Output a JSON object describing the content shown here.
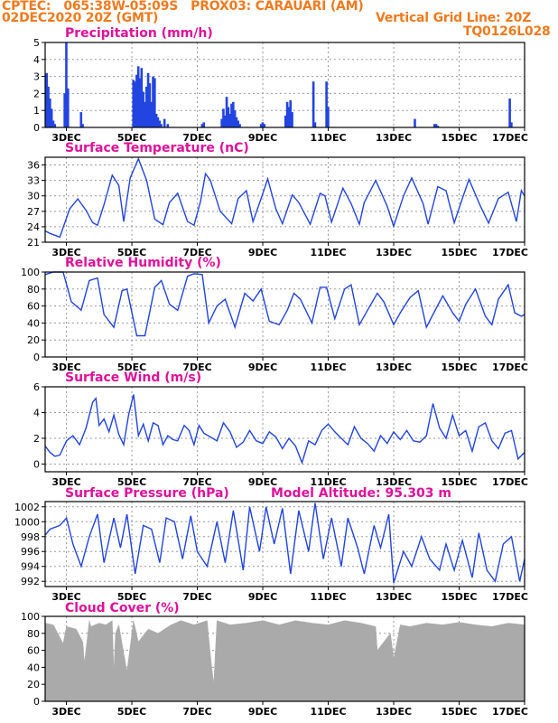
{
  "header": {
    "line1_left": "CPTEC:   065:38W-05:09S   PROX03: CARAUARI (AM)",
    "line2_left": "02DEC2020 20Z (GMT)",
    "line2_right": "Vertical Grid Line: 20Z",
    "line3_right": "TQ0126L028"
  },
  "colors": {
    "header": "#f07a1e",
    "title": "#e0109a",
    "series": "#2244e0",
    "cloud": "#aaaaaa"
  },
  "x_axis": {
    "ticks": [
      "3DEC",
      "5DEC",
      "7DEC",
      "9DEC",
      "11DEC",
      "13DEC",
      "15DEC",
      "17DEC"
    ],
    "tick_days": [
      3,
      5,
      7,
      9,
      11,
      13,
      15,
      17
    ],
    "range": [
      2.35,
      17.0
    ]
  },
  "chart_data": [
    {
      "type": "bar",
      "title": "Precipitation (mm/h)",
      "ylim": [
        0,
        5
      ],
      "yticks": [
        0,
        1,
        2,
        3,
        4,
        5
      ],
      "x": [
        2.4,
        2.45,
        2.5,
        2.55,
        2.6,
        2.65,
        2.95,
        3.0,
        3.05,
        3.45,
        3.5,
        5.05,
        5.1,
        5.15,
        5.2,
        5.25,
        5.3,
        5.35,
        5.4,
        5.45,
        5.5,
        5.55,
        5.6,
        5.65,
        5.7,
        5.75,
        5.8,
        5.85,
        5.9,
        6.0,
        6.1,
        7.15,
        7.2,
        7.75,
        7.8,
        7.85,
        7.9,
        7.95,
        8.0,
        8.05,
        8.1,
        8.15,
        8.2,
        8.25,
        8.3,
        8.95,
        9.0,
        9.05,
        9.7,
        9.75,
        9.8,
        9.85,
        9.9,
        10.55,
        10.6,
        10.95,
        11.0,
        13.65,
        14.25,
        14.3,
        14.35,
        16.55,
        16.6
      ],
      "values": [
        3.2,
        2.4,
        1.7,
        1.1,
        0.4,
        0.2,
        2.0,
        5.0,
        2.3,
        0.9,
        0.2,
        2.8,
        2.7,
        3.1,
        3.6,
        2.9,
        3.5,
        2.1,
        1.5,
        2.4,
        3.2,
        2.6,
        1.5,
        3.0,
        2.9,
        0.8,
        0.6,
        0.4,
        0.2,
        0.5,
        0.2,
        0.2,
        0.3,
        0.5,
        1.1,
        0.7,
        1.8,
        1.2,
        0.8,
        1.4,
        1.5,
        1.0,
        0.6,
        0.4,
        0.2,
        0.2,
        0.3,
        0.2,
        0.7,
        1.5,
        1.2,
        1.6,
        0.9,
        2.7,
        0.3,
        2.7,
        1.2,
        0.5,
        0.2,
        0.2,
        0.1,
        1.7,
        0.3
      ]
    },
    {
      "type": "line",
      "title": "Surface Temperature (nC)",
      "ylim": [
        21,
        37.5
      ],
      "yticks": [
        21,
        24,
        27,
        30,
        33,
        36
      ],
      "x": [
        2.35,
        2.5,
        2.8,
        3.1,
        3.35,
        3.6,
        3.8,
        3.95,
        4.15,
        4.4,
        4.6,
        4.75,
        4.95,
        5.2,
        5.45,
        5.7,
        5.95,
        6.15,
        6.4,
        6.7,
        6.9,
        7.1,
        7.25,
        7.4,
        7.7,
        8.05,
        8.25,
        8.5,
        8.7,
        8.95,
        9.15,
        9.4,
        9.6,
        9.9,
        10.1,
        10.45,
        10.75,
        10.9,
        11.1,
        11.45,
        11.7,
        11.95,
        12.1,
        12.45,
        12.8,
        13.0,
        13.3,
        13.55,
        13.9,
        14.05,
        14.35,
        14.6,
        14.85,
        15.1,
        15.3,
        15.65,
        15.9,
        16.2,
        16.5,
        16.75,
        16.9,
        17.0
      ],
      "values": [
        23.2,
        22.7,
        22.0,
        27.5,
        29.4,
        27.2,
        24.8,
        24.3,
        28.3,
        34.0,
        32.0,
        25.0,
        33.5,
        37.2,
        33.0,
        25.5,
        24.4,
        28.7,
        30.5,
        25.0,
        24.3,
        29.0,
        34.3,
        33.0,
        27.0,
        24.6,
        29.5,
        31.0,
        25.0,
        29.5,
        33.3,
        27.5,
        24.6,
        30.2,
        28.7,
        24.5,
        30.5,
        30.0,
        24.9,
        31.5,
        28.5,
        24.5,
        28.7,
        33.0,
        28.0,
        24.1,
        30.0,
        33.5,
        28.5,
        24.5,
        31.8,
        31.0,
        24.8,
        29.5,
        33.2,
        28.0,
        24.7,
        29.5,
        30.7,
        25.0,
        31.0,
        30.0
      ]
    },
    {
      "type": "line",
      "title": "Relative Humidity (%)",
      "ylim": [
        0,
        100
      ],
      "yticks": [
        0,
        20,
        40,
        60,
        80,
        100
      ],
      "x": [
        2.35,
        2.6,
        2.9,
        3.15,
        3.45,
        3.7,
        3.95,
        4.15,
        4.45,
        4.7,
        4.85,
        5.15,
        5.4,
        5.7,
        5.9,
        6.15,
        6.4,
        6.7,
        6.9,
        7.15,
        7.35,
        7.6,
        7.85,
        8.15,
        8.45,
        8.7,
        8.95,
        9.2,
        9.5,
        9.75,
        9.95,
        10.15,
        10.5,
        10.75,
        10.95,
        11.2,
        11.5,
        11.7,
        11.95,
        12.2,
        12.5,
        12.7,
        13.0,
        13.2,
        13.5,
        13.75,
        14.0,
        14.2,
        14.5,
        14.8,
        15.0,
        15.2,
        15.5,
        15.8,
        16.0,
        16.2,
        16.5,
        16.7,
        16.9,
        17.0
      ],
      "values": [
        97,
        100,
        100,
        65,
        55,
        90,
        93,
        50,
        35,
        78,
        80,
        25,
        25,
        82,
        90,
        62,
        55,
        95,
        98,
        97,
        40,
        60,
        68,
        35,
        75,
        66,
        80,
        42,
        38,
        55,
        75,
        68,
        40,
        82,
        82,
        45,
        80,
        85,
        38,
        55,
        75,
        65,
        38,
        52,
        70,
        78,
        35,
        50,
        72,
        52,
        42,
        62,
        80,
        48,
        38,
        68,
        85,
        52,
        48,
        50
      ]
    },
    {
      "type": "line",
      "title": "Surface Wind (m/s)",
      "ylim": [
        -0.6,
        6
      ],
      "yticks": [
        0,
        2,
        4,
        6
      ],
      "x": [
        2.35,
        2.5,
        2.65,
        2.8,
        3.0,
        3.2,
        3.4,
        3.6,
        3.8,
        3.9,
        4.0,
        4.15,
        4.3,
        4.45,
        4.6,
        4.75,
        4.9,
        5.05,
        5.2,
        5.35,
        5.5,
        5.65,
        5.8,
        5.95,
        6.1,
        6.25,
        6.4,
        6.6,
        6.75,
        6.9,
        7.05,
        7.2,
        7.4,
        7.6,
        7.8,
        8.0,
        8.2,
        8.4,
        8.6,
        8.8,
        9.0,
        9.2,
        9.4,
        9.6,
        9.8,
        10.0,
        10.2,
        10.4,
        10.6,
        10.8,
        11.0,
        11.2,
        11.4,
        11.6,
        11.8,
        12.0,
        12.2,
        12.4,
        12.6,
        12.8,
        13.0,
        13.2,
        13.4,
        13.6,
        13.8,
        14.0,
        14.2,
        14.4,
        14.6,
        14.8,
        15.0,
        15.2,
        15.4,
        15.6,
        15.8,
        16.0,
        16.2,
        16.4,
        16.6,
        16.8,
        17.0
      ],
      "values": [
        1.4,
        0.9,
        0.6,
        0.7,
        1.8,
        2.2,
        1.5,
        2.8,
        4.8,
        5.1,
        3.0,
        3.5,
        2.5,
        3.8,
        2.3,
        1.5,
        3.8,
        5.4,
        2.2,
        3.1,
        1.8,
        3.2,
        3.0,
        1.5,
        2.2,
        1.9,
        1.8,
        3.0,
        2.6,
        1.5,
        3.0,
        2.4,
        2.1,
        1.8,
        3.2,
        2.5,
        1.3,
        1.7,
        2.6,
        1.8,
        1.6,
        2.5,
        2.1,
        1.2,
        2.0,
        1.4,
        0.1,
        1.8,
        1.5,
        2.6,
        3.1,
        2.5,
        2.0,
        1.5,
        2.9,
        2.0,
        1.6,
        1.0,
        2.2,
        1.6,
        2.5,
        1.9,
        2.6,
        1.8,
        1.7,
        2.2,
        4.7,
        2.8,
        2.0,
        3.8,
        2.2,
        2.6,
        1.0,
        2.9,
        3.2,
        1.8,
        1.2,
        2.4,
        2.6,
        0.4,
        0.9
      ]
    },
    {
      "type": "line",
      "title": "Surface Pressure (hPa)",
      "annotation": "Model Altitude: 95.303 m",
      "ylim": [
        991.3,
        1002.7
      ],
      "yticks": [
        992,
        994,
        996,
        998,
        1000,
        1002
      ],
      "x": [
        2.35,
        2.5,
        2.8,
        3.0,
        3.2,
        3.45,
        3.7,
        3.95,
        4.15,
        4.45,
        4.65,
        4.85,
        5.1,
        5.35,
        5.6,
        5.85,
        6.05,
        6.3,
        6.55,
        6.8,
        7.0,
        7.3,
        7.6,
        7.85,
        8.1,
        8.4,
        8.6,
        8.9,
        9.1,
        9.35,
        9.6,
        9.85,
        10.1,
        10.4,
        10.6,
        10.85,
        11.1,
        11.4,
        11.6,
        11.9,
        12.1,
        12.4,
        12.6,
        12.85,
        13.0,
        13.3,
        13.55,
        13.85,
        14.1,
        14.4,
        14.6,
        14.85,
        15.1,
        15.4,
        15.6,
        15.85,
        16.1,
        16.35,
        16.6,
        16.85,
        17.0
      ],
      "values": [
        998.2,
        999.0,
        999.5,
        1000.5,
        997.0,
        994.0,
        998.0,
        1001.0,
        994.5,
        1000.5,
        996.5,
        1001.0,
        993.0,
        999.5,
        999.0,
        994.5,
        1000.5,
        1000.0,
        995.0,
        1000.8,
        996.0,
        994.0,
        1000.0,
        994.5,
        1001.5,
        993.5,
        1002.0,
        996.0,
        1002.0,
        997.0,
        1001.8,
        993.0,
        1001.5,
        996.0,
        1002.5,
        995.0,
        1000.5,
        994.0,
        1000.5,
        996.5,
        993.0,
        999.5,
        996.5,
        1001.0,
        991.8,
        996.0,
        994.0,
        998.0,
        995.0,
        993.5,
        997.0,
        993.5,
        997.5,
        992.5,
        998.5,
        993.5,
        992.0,
        997.0,
        998.0,
        992.0,
        995.0
      ]
    },
    {
      "type": "area",
      "title": "Cloud Cover (%)",
      "ylim": [
        0,
        100
      ],
      "yticks": [
        0,
        20,
        40,
        60,
        80,
        100
      ],
      "x": [
        2.35,
        2.6,
        2.9,
        3.0,
        3.3,
        3.5,
        3.55,
        3.7,
        3.75,
        4.0,
        4.2,
        4.4,
        4.45,
        4.5,
        4.6,
        4.85,
        5.0,
        5.05,
        5.2,
        5.5,
        5.8,
        6.2,
        6.5,
        6.9,
        7.3,
        7.4,
        7.5,
        7.6,
        8.0,
        8.5,
        9.0,
        9.5,
        10.0,
        10.5,
        11.0,
        11.5,
        12.0,
        12.45,
        12.5,
        12.9,
        13.0,
        13.2,
        13.5,
        14.0,
        14.5,
        15.0,
        15.5,
        16.0,
        16.5,
        17.0
      ],
      "values": [
        92,
        90,
        68,
        88,
        85,
        70,
        45,
        95,
        88,
        92,
        90,
        95,
        35,
        80,
        90,
        35,
        80,
        95,
        70,
        85,
        80,
        90,
        95,
        90,
        95,
        55,
        20,
        95,
        90,
        92,
        95,
        90,
        95,
        92,
        90,
        95,
        92,
        88,
        60,
        80,
        50,
        90,
        88,
        92,
        90,
        93,
        90,
        88,
        92,
        90
      ]
    }
  ]
}
